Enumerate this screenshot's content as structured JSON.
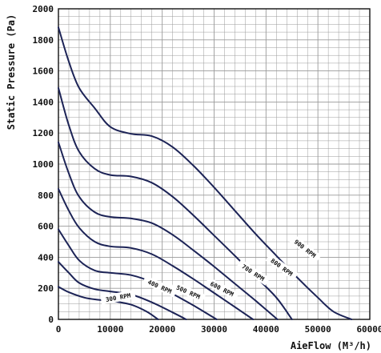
{
  "chart_data": {
    "type": "line",
    "title": "",
    "xlabel": "AieFlow (M³/h)",
    "ylabel": "Static Pressure (Pa)",
    "xlim": [
      0,
      60000
    ],
    "ylim": [
      0,
      2000
    ],
    "x_ticks": [
      "0",
      "10000",
      "20000",
      "30000",
      "40000",
      "50000",
      "60000"
    ],
    "y_ticks": [
      "0",
      "200",
      "400",
      "600",
      "800",
      "1000",
      "1200",
      "1400",
      "1600",
      "1800",
      "2000"
    ],
    "grid": true,
    "colors": {
      "curve": "#1c2356",
      "grid": "#9a9a9a",
      "frame": "#111111"
    },
    "series": [
      {
        "name": "300 RPM",
        "points": [
          [
            0,
            210
          ],
          [
            2000,
            175
          ],
          [
            5000,
            140
          ],
          [
            8000,
            125
          ],
          [
            11000,
            115
          ],
          [
            14000,
            95
          ],
          [
            17000,
            50
          ],
          [
            19200,
            0
          ]
        ],
        "label_at": [
          11500,
          140
        ],
        "label_angle": -10
      },
      {
        "name": "400 RPM",
        "points": [
          [
            0,
            370
          ],
          [
            2000,
            300
          ],
          [
            4000,
            235
          ],
          [
            7000,
            195
          ],
          [
            10000,
            180
          ],
          [
            14000,
            160
          ],
          [
            18000,
            110
          ],
          [
            22000,
            45
          ],
          [
            24600,
            0
          ]
        ],
        "label_at": [
          19500,
          210
        ],
        "label_angle": 24
      },
      {
        "name": "500 RPM",
        "points": [
          [
            0,
            580
          ],
          [
            2000,
            475
          ],
          [
            4000,
            380
          ],
          [
            7000,
            315
          ],
          [
            10000,
            300
          ],
          [
            14000,
            285
          ],
          [
            18000,
            240
          ],
          [
            22000,
            165
          ],
          [
            26000,
            90
          ],
          [
            30500,
            0
          ]
        ],
        "label_at": [
          25000,
          175
        ],
        "label_angle": 24
      },
      {
        "name": "600 RPM",
        "points": [
          [
            0,
            840
          ],
          [
            2000,
            700
          ],
          [
            4000,
            590
          ],
          [
            7000,
            500
          ],
          [
            10000,
            470
          ],
          [
            14000,
            460
          ],
          [
            18000,
            420
          ],
          [
            22000,
            345
          ],
          [
            26000,
            260
          ],
          [
            30000,
            170
          ],
          [
            34000,
            80
          ],
          [
            37500,
            0
          ]
        ],
        "label_at": [
          31500,
          195
        ],
        "label_angle": 27
      },
      {
        "name": "700 RPM",
        "points": [
          [
            0,
            1140
          ],
          [
            2000,
            940
          ],
          [
            4000,
            790
          ],
          [
            7000,
            690
          ],
          [
            10000,
            660
          ],
          [
            14000,
            650
          ],
          [
            18000,
            620
          ],
          [
            22000,
            545
          ],
          [
            26000,
            445
          ],
          [
            30000,
            340
          ],
          [
            34000,
            230
          ],
          [
            38000,
            120
          ],
          [
            42200,
            0
          ]
        ],
        "label_at": [
          37500,
          300
        ],
        "label_angle": 33
      },
      {
        "name": "800 RPM",
        "points": [
          [
            0,
            1490
          ],
          [
            2000,
            1250
          ],
          [
            4000,
            1080
          ],
          [
            7000,
            970
          ],
          [
            10000,
            930
          ],
          [
            14000,
            920
          ],
          [
            18000,
            880
          ],
          [
            22000,
            790
          ],
          [
            26000,
            670
          ],
          [
            30000,
            540
          ],
          [
            34000,
            410
          ],
          [
            38000,
            275
          ],
          [
            42000,
            140
          ],
          [
            45000,
            0
          ]
        ],
        "label_at": [
          43000,
          335
        ],
        "label_angle": 36
      },
      {
        "name": "900 RPM",
        "points": [
          [
            0,
            1880
          ],
          [
            2000,
            1660
          ],
          [
            4000,
            1490
          ],
          [
            7000,
            1360
          ],
          [
            10000,
            1240
          ],
          [
            14000,
            1195
          ],
          [
            18000,
            1180
          ],
          [
            22000,
            1110
          ],
          [
            26000,
            990
          ],
          [
            30000,
            850
          ],
          [
            34000,
            700
          ],
          [
            38000,
            550
          ],
          [
            42000,
            410
          ],
          [
            46000,
            270
          ],
          [
            50000,
            140
          ],
          [
            53000,
            50
          ],
          [
            56500,
            0
          ]
        ],
        "label_at": [
          47500,
          455
        ],
        "label_angle": 38
      }
    ]
  }
}
